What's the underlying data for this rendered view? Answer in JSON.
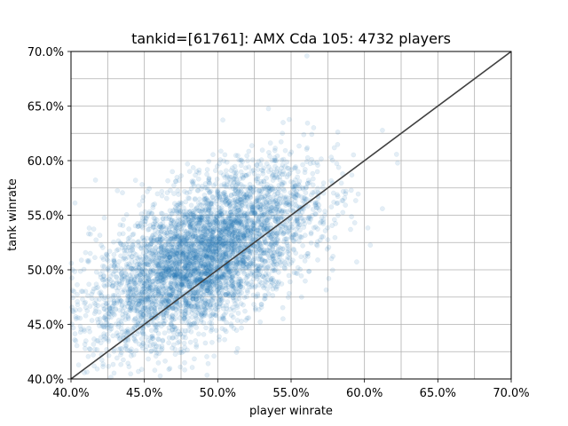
{
  "chart_data": {
    "type": "scatter",
    "title": "tankid=[61761]: AMX Cda 105: 4732 players",
    "xlabel": "player winrate",
    "ylabel": "tank winrate",
    "xlim": [
      0.4,
      0.7
    ],
    "ylim": [
      0.4,
      0.7
    ],
    "x_ticks": [
      0.4,
      0.45,
      0.5,
      0.55,
      0.6,
      0.65,
      0.7
    ],
    "y_ticks": [
      0.4,
      0.45,
      0.5,
      0.55,
      0.6,
      0.65,
      0.7
    ],
    "x_tick_labels": [
      "40.0%",
      "45.0%",
      "50.0%",
      "55.0%",
      "60.0%",
      "65.0%",
      "70.0%"
    ],
    "y_tick_labels": [
      "40.0%",
      "45.0%",
      "50.0%",
      "55.0%",
      "60.0%",
      "65.0%",
      "70.0%"
    ],
    "minor_grid_step": 0.025,
    "grid": true,
    "point_count": 4732,
    "point_color": "#1f77b4",
    "point_alpha": 0.12,
    "reference_line": {
      "from": [
        0.4,
        0.4
      ],
      "to": [
        0.7,
        0.7
      ],
      "color": "#404040"
    },
    "distribution": {
      "center_x": 0.49,
      "center_y": 0.512,
      "sd_x": 0.037,
      "sd_y": 0.04,
      "corr": 0.58
    }
  }
}
